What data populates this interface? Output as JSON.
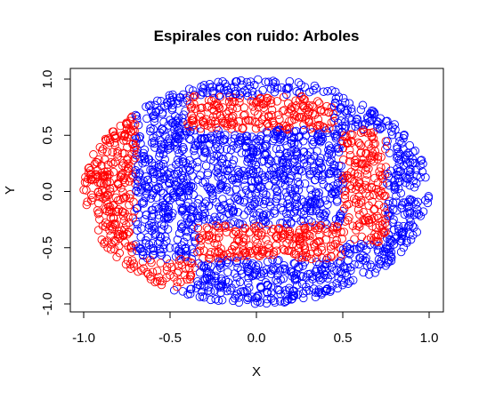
{
  "chart_data": {
    "type": "scatter",
    "title": "Espirales con ruido: Arboles",
    "xlabel": "X",
    "ylabel": "Y",
    "xlim": [
      -1.0,
      1.0
    ],
    "ylim": [
      -1.0,
      1.0
    ],
    "x_ticks": [
      -1.0,
      -0.5,
      0.0,
      0.5,
      1.0
    ],
    "x_tick_labels": [
      "-1.0",
      "-0.5",
      "0.0",
      "0.5",
      "1.0"
    ],
    "y_ticks": [
      -1.0,
      -0.5,
      0.0,
      0.5,
      1.0
    ],
    "y_tick_labels": [
      "-1.0",
      "-0.5",
      "0.0",
      "0.5",
      "1.0"
    ],
    "grid": false,
    "marker": "open-circle",
    "colors": {
      "red_class": "#ff0000",
      "blue_class": "#0000ff"
    },
    "regions": {
      "red": [
        {
          "x": [
            -0.4,
            0.45
          ],
          "y": [
            0.55,
            0.85
          ]
        },
        {
          "x": [
            -0.85,
            -0.7
          ],
          "y": [
            -0.4,
            0.35
          ]
        },
        {
          "x": [
            0.5,
            0.75
          ],
          "y": [
            -0.45,
            0.55
          ]
        },
        {
          "x": [
            -0.35,
            0.5
          ],
          "y": [
            -0.6,
            -0.3
          ]
        },
        {
          "x": [
            -0.7,
            -0.35
          ],
          "y": [
            -0.85,
            -0.6
          ]
        }
      ],
      "blue": [
        {
          "x": [
            -0.7,
            0.55
          ],
          "y": [
            -0.3,
            0.55
          ]
        },
        {
          "x": [
            -0.2,
            0.5
          ],
          "y": [
            -0.9,
            -0.6
          ]
        },
        {
          "x": [
            0.75,
            1.0
          ],
          "y": [
            -0.5,
            0.6
          ]
        }
      ]
    },
    "series": [
      {
        "color": "#0000ff",
        "approx_points": 1500
      },
      {
        "color": "#ff0000",
        "approx_points": 1000
      }
    ]
  }
}
